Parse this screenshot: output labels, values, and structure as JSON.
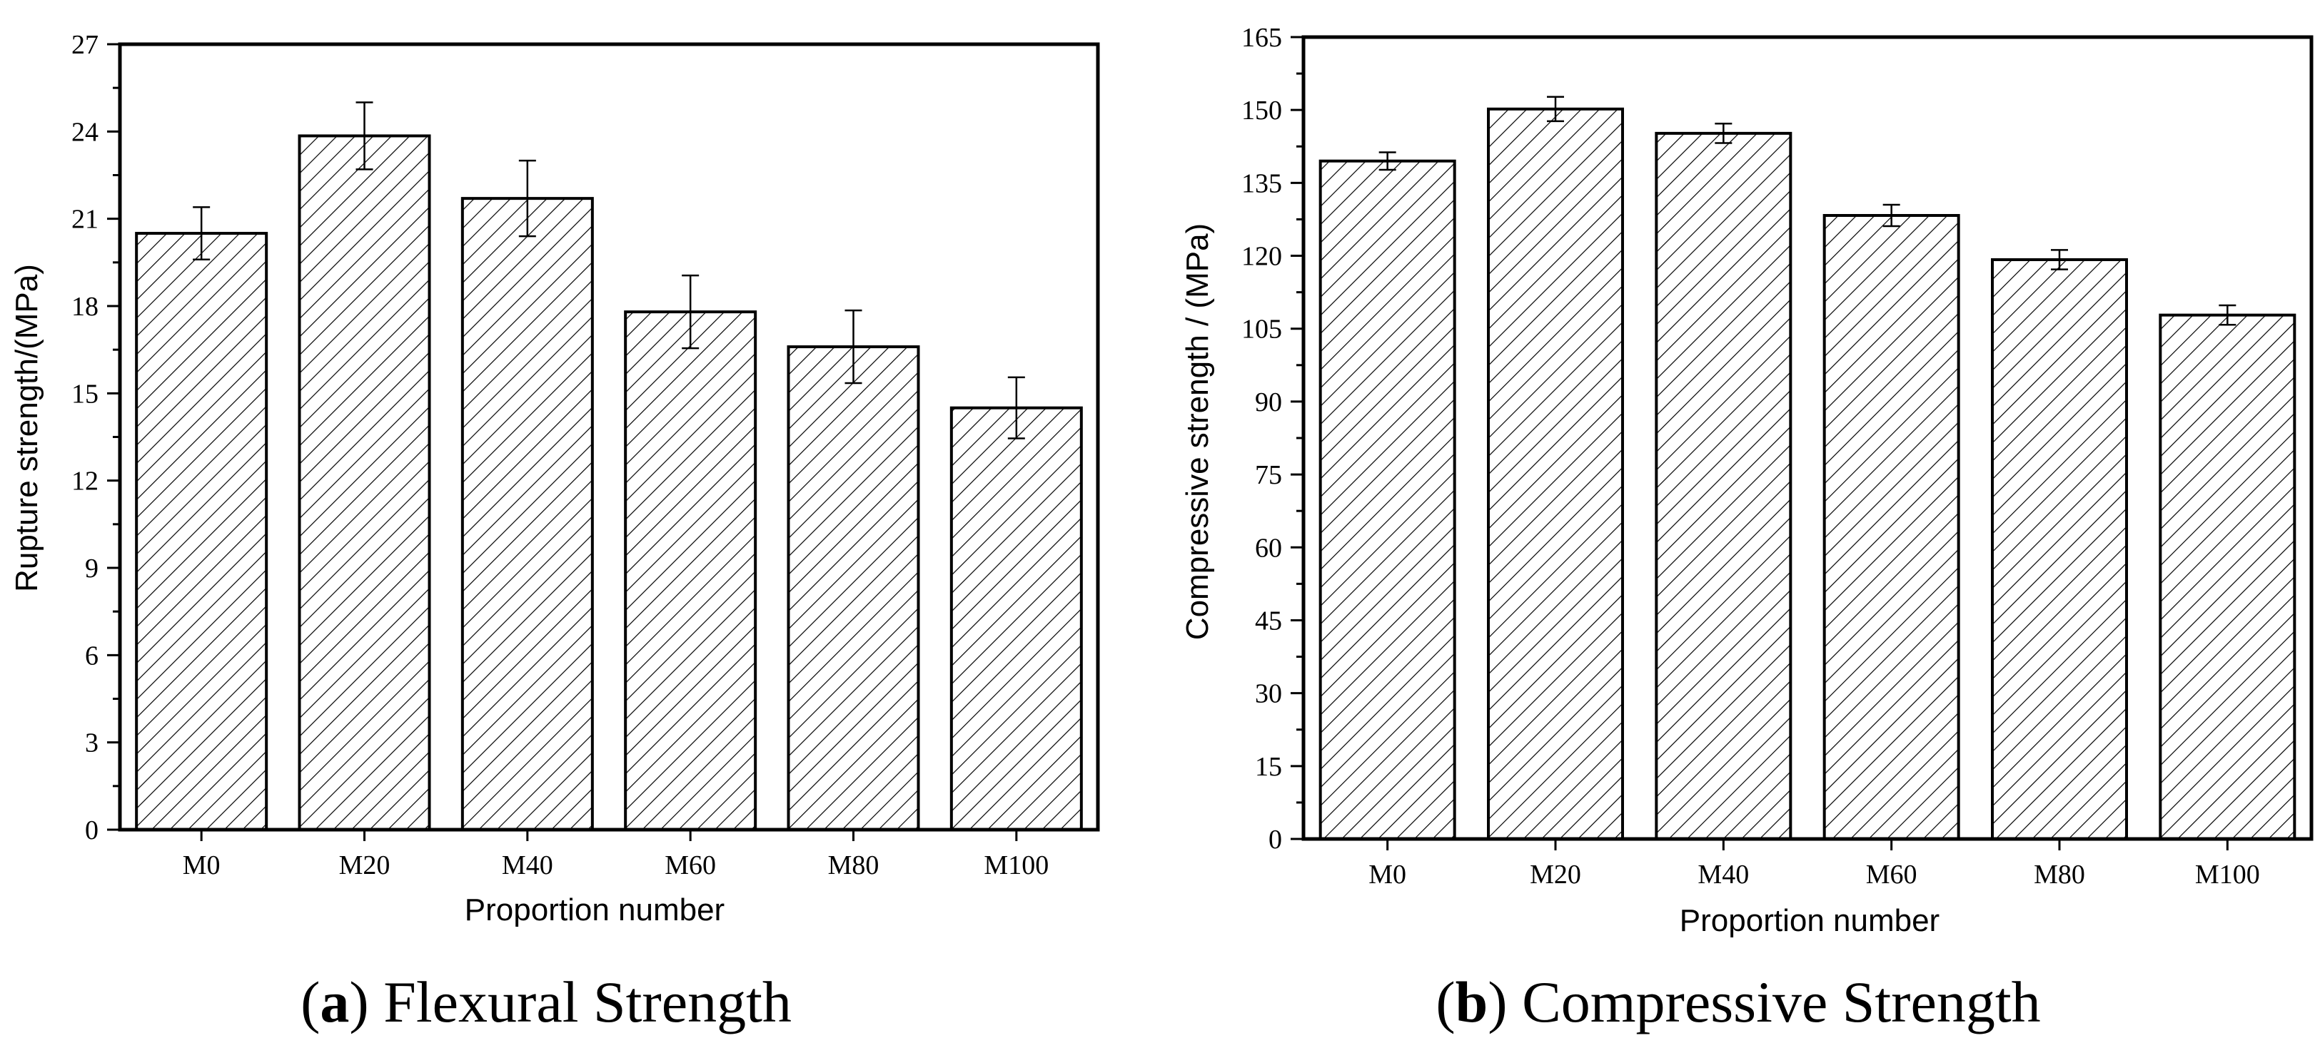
{
  "chart_data": [
    {
      "type": "bar",
      "caption_letter": "a",
      "caption_text": "Flexural Strength",
      "categories": [
        "M0",
        "M20",
        "M40",
        "M60",
        "M80",
        "M100"
      ],
      "values": [
        20.5,
        23.85,
        21.7,
        17.8,
        16.6,
        14.5
      ],
      "error": [
        0.9,
        1.15,
        1.3,
        1.25,
        1.25,
        1.05
      ],
      "xlabel": "Proportion number",
      "ylabel": "Rupture strength/(MPa)",
      "ylim": [
        0,
        27
      ],
      "yticks": [
        "0",
        "3",
        "6",
        "9",
        "12",
        "15",
        "18",
        "21",
        "24",
        "27"
      ]
    },
    {
      "type": "bar",
      "caption_letter": "b",
      "caption_text": "Compressive Strength",
      "categories": [
        "M0",
        "M20",
        "M40",
        "M60",
        "M80",
        "M100"
      ],
      "values": [
        139.5,
        150.2,
        145.2,
        128.3,
        119.2,
        107.8
      ],
      "error": [
        1.8,
        2.5,
        2.0,
        2.2,
        2.0,
        2.0
      ],
      "xlabel": "Proportion number",
      "ylabel": "Compressive strength / (MPa)",
      "ylim": [
        0,
        165
      ],
      "yticks": [
        "0",
        "15",
        "30",
        "45",
        "60",
        "75",
        "90",
        "105",
        "120",
        "135",
        "150",
        "165"
      ]
    }
  ]
}
